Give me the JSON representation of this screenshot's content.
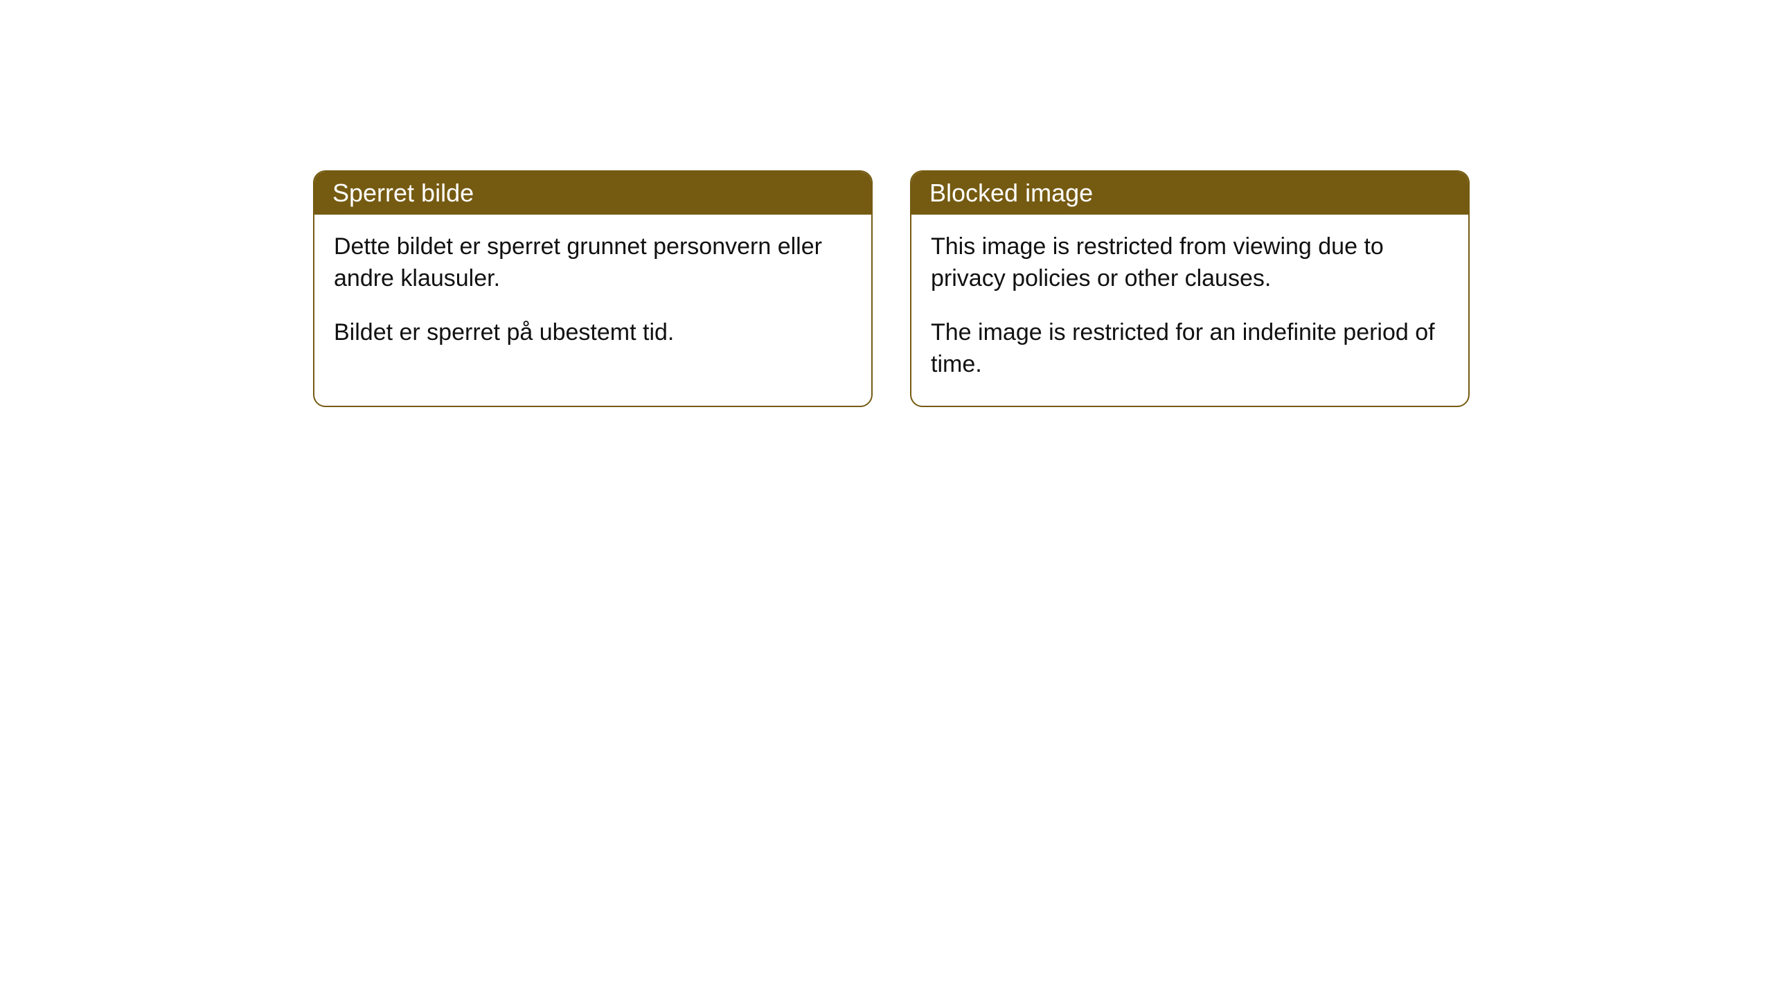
{
  "cards": [
    {
      "title": "Sperret bilde",
      "paragraph1": "Dette bildet er sperret grunnet personvern eller andre klausuler.",
      "paragraph2": "Bildet er sperret på ubestemt tid."
    },
    {
      "title": "Blocked image",
      "paragraph1": "This image is restricted from viewing due to privacy policies or other clauses.",
      "paragraph2": "The image is restricted for an indefinite period of time."
    }
  ],
  "styles": {
    "header_bg_color": "#755b12",
    "header_text_color": "#ffffff",
    "border_color": "#755b12",
    "body_bg_color": "#ffffff",
    "body_text_color": "#111111",
    "border_radius": 18,
    "header_fontsize": 36,
    "body_fontsize": 34
  }
}
